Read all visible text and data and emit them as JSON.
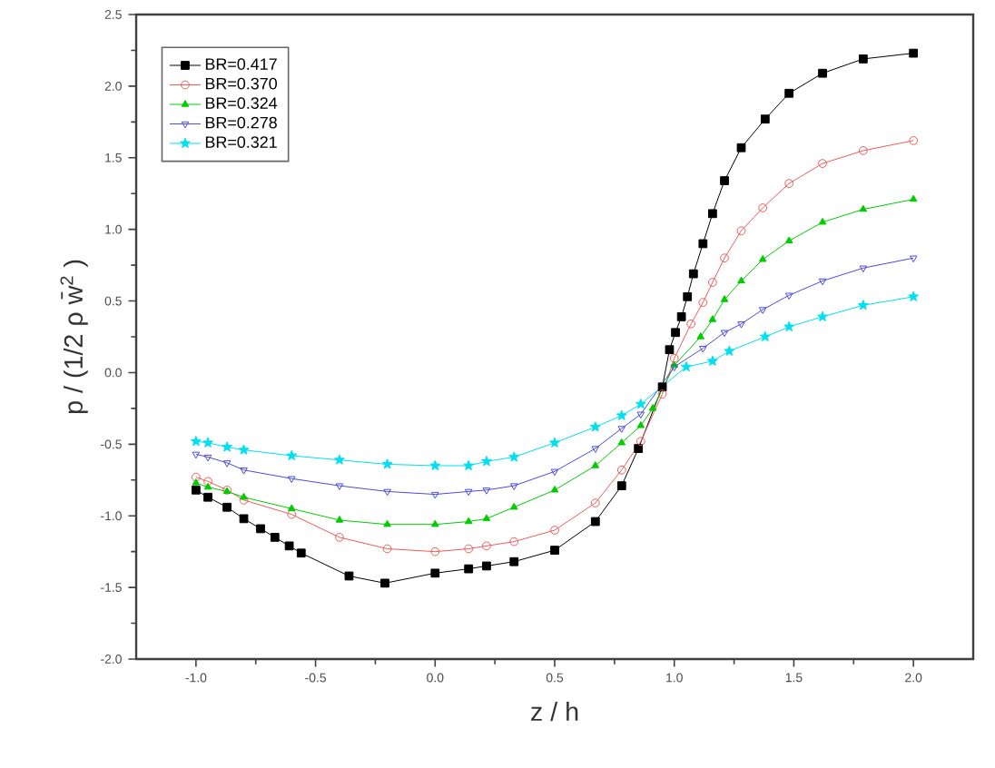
{
  "chart_data": {
    "type": "line",
    "xlabel": "z / h",
    "ylabel": "p / (1/2 ρ w̄$^{2}$ )",
    "xlim": [
      -1.25,
      2.25
    ],
    "ylim": [
      -2.0,
      2.5
    ],
    "xticks": [
      {
        "value": -1.0,
        "label": "-1.0"
      },
      {
        "value": -0.5,
        "label": "-0.5"
      },
      {
        "value": 0.0,
        "label": "0.0"
      },
      {
        "value": 0.5,
        "label": "0.5"
      },
      {
        "value": 1.0,
        "label": "1.0"
      },
      {
        "value": 1.5,
        "label": "1.5"
      },
      {
        "value": 2.0,
        "label": "2.0"
      }
    ],
    "yticks": [
      {
        "value": -2.0,
        "label": "-2.0"
      },
      {
        "value": -1.5,
        "label": "-1.5"
      },
      {
        "value": -1.0,
        "label": "-1.0"
      },
      {
        "value": -0.5,
        "label": "-0.5"
      },
      {
        "value": 0.0,
        "label": "0.0"
      },
      {
        "value": 0.5,
        "label": "0.5"
      },
      {
        "value": 1.0,
        "label": "1.0"
      },
      {
        "value": 1.5,
        "label": "1.5"
      },
      {
        "value": 2.0,
        "label": "2.0"
      },
      {
        "value": 2.5,
        "label": "2.5"
      }
    ],
    "grid": false,
    "legend": "top left",
    "line_style": "solid",
    "series": [
      {
        "name": "BR=0.417",
        "color": "#000000",
        "marker": "square",
        "x": [
          -1.0,
          -0.95,
          -0.87,
          -0.8,
          -0.73,
          -0.67,
          -0.61,
          -0.56,
          -0.36,
          -0.21,
          0.0,
          0.14,
          0.215,
          0.33,
          0.5,
          0.67,
          0.78,
          0.85,
          0.95,
          0.98,
          1.005,
          1.03,
          1.055,
          1.08,
          1.12,
          1.16,
          1.21,
          1.28,
          1.38,
          1.48,
          1.62,
          1.79,
          2.0
        ],
        "values": [
          -0.82,
          -0.87,
          -0.94,
          -1.02,
          -1.09,
          -1.15,
          -1.21,
          -1.26,
          -1.42,
          -1.47,
          -1.4,
          -1.37,
          -1.35,
          -1.32,
          -1.24,
          -1.04,
          -0.79,
          -0.53,
          -0.1,
          0.16,
          0.28,
          0.39,
          0.53,
          0.69,
          0.9,
          1.11,
          1.34,
          1.57,
          1.77,
          1.95,
          2.09,
          2.19,
          2.23
        ]
      },
      {
        "name": "BR=0.370",
        "color": "#f05a5a",
        "marker": "circle",
        "x": [
          -1.0,
          -0.95,
          -0.87,
          -0.8,
          -0.6,
          -0.4,
          -0.2,
          0.0,
          0.14,
          0.215,
          0.33,
          0.5,
          0.67,
          0.78,
          0.86,
          0.95,
          1.0,
          1.07,
          1.12,
          1.16,
          1.21,
          1.28,
          1.37,
          1.48,
          1.62,
          1.79,
          2.0
        ],
        "values": [
          -0.73,
          -0.76,
          -0.82,
          -0.89,
          -0.99,
          -1.15,
          -1.23,
          -1.25,
          -1.23,
          -1.21,
          -1.18,
          -1.1,
          -0.91,
          -0.68,
          -0.48,
          -0.15,
          0.1,
          0.34,
          0.49,
          0.63,
          0.8,
          0.99,
          1.15,
          1.32,
          1.46,
          1.55,
          1.62
        ]
      },
      {
        "name": "BR=0.324",
        "color": "#00cc00",
        "marker": "triangle",
        "x": [
          -1.0,
          -0.95,
          -0.87,
          -0.8,
          -0.6,
          -0.4,
          -0.2,
          0.0,
          0.14,
          0.215,
          0.33,
          0.5,
          0.67,
          0.78,
          0.86,
          0.91,
          1.0,
          1.11,
          1.16,
          1.21,
          1.28,
          1.37,
          1.48,
          1.62,
          1.79,
          2.0
        ],
        "values": [
          -0.77,
          -0.8,
          -0.83,
          -0.87,
          -0.95,
          -1.03,
          -1.06,
          -1.06,
          -1.04,
          -1.02,
          -0.94,
          -0.82,
          -0.65,
          -0.49,
          -0.37,
          -0.25,
          0.05,
          0.25,
          0.37,
          0.51,
          0.64,
          0.79,
          0.92,
          1.05,
          1.14,
          1.21
        ]
      },
      {
        "name": "BR=0.278",
        "color": "#4a4ae0",
        "marker": "triangle-down",
        "x": [
          -1.0,
          -0.95,
          -0.87,
          -0.8,
          -0.6,
          -0.4,
          -0.2,
          0.0,
          0.14,
          0.215,
          0.33,
          0.5,
          0.67,
          0.78,
          0.86,
          1.0,
          1.12,
          1.21,
          1.28,
          1.37,
          1.48,
          1.62,
          1.79,
          2.0
        ],
        "values": [
          -0.57,
          -0.59,
          -0.63,
          -0.68,
          -0.74,
          -0.79,
          -0.83,
          -0.85,
          -0.83,
          -0.82,
          -0.79,
          -0.69,
          -0.53,
          -0.39,
          -0.29,
          0.04,
          0.17,
          0.28,
          0.34,
          0.44,
          0.54,
          0.64,
          0.73,
          0.8
        ]
      },
      {
        "name": "BR=0.321",
        "color": "#00e0f0",
        "marker": "star",
        "x": [
          -1.0,
          -0.95,
          -0.87,
          -0.8,
          -0.6,
          -0.4,
          -0.2,
          0.0,
          0.14,
          0.215,
          0.33,
          0.5,
          0.67,
          0.78,
          0.86,
          1.05,
          1.16,
          1.23,
          1.38,
          1.48,
          1.62,
          1.79,
          2.0
        ],
        "values": [
          -0.48,
          -0.49,
          -0.52,
          -0.54,
          -0.58,
          -0.61,
          -0.64,
          -0.65,
          -0.65,
          -0.62,
          -0.59,
          -0.49,
          -0.38,
          -0.3,
          -0.22,
          0.04,
          0.08,
          0.15,
          0.25,
          0.32,
          0.39,
          0.47,
          0.53
        ]
      }
    ]
  }
}
